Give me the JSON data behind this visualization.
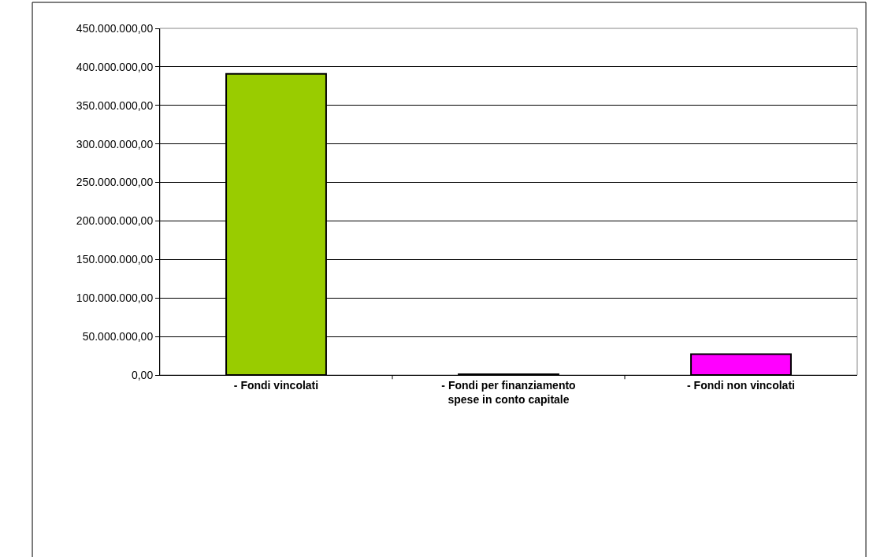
{
  "chart_data": {
    "type": "bar",
    "categories": [
      "- Fondi vincolati",
      "- Fondi per finanziamento\nspese in conto capitale",
      "- Fondi non vincolati"
    ],
    "values": [
      391000000,
      1000000,
      27000000
    ],
    "colors": [
      "#99cc00",
      "#000000",
      "#ff00ff"
    ],
    "ylim": [
      0,
      450000000
    ],
    "yticks": [
      {
        "value": 0,
        "label": "0,00"
      },
      {
        "value": 50000000,
        "label": "50.000.000,00"
      },
      {
        "value": 100000000,
        "label": "100.000.000,00"
      },
      {
        "value": 150000000,
        "label": "150.000.000,00"
      },
      {
        "value": 200000000,
        "label": "200.000.000,00"
      },
      {
        "value": 250000000,
        "label": "250.000.000,00"
      },
      {
        "value": 300000000,
        "label": "300.000.000,00"
      },
      {
        "value": 350000000,
        "label": "350.000.000,00"
      },
      {
        "value": 400000000,
        "label": "400.000.000,00"
      },
      {
        "value": 450000000,
        "label": "450.000.000,00"
      }
    ],
    "grid": "y"
  }
}
